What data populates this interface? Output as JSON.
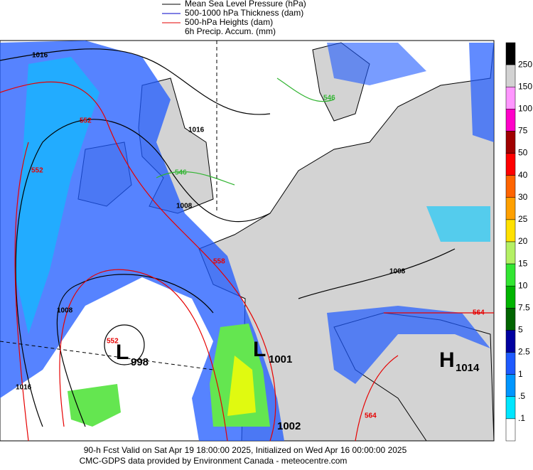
{
  "legend": [
    "Mean Sea Level Pressure (hPa)",
    "500-1000 hPa Thickness (dam)",
    "500-hPa Heights (dam)",
    "6h Precip. Accum. (mm)"
  ],
  "colorbar": [
    "250",
    "150",
    "100",
    "75",
    "50",
    "40",
    "30",
    "25",
    "20",
    "15",
    "10",
    "7.5",
    "5",
    "2.5",
    "1",
    ".5",
    ".1"
  ],
  "contour_labels": [
    "1016",
    "1016",
    "1016",
    "1008",
    "1008",
    "1008",
    "552",
    "552",
    "558",
    "546",
    "546",
    "564",
    "564",
    "552"
  ],
  "centers": [
    {
      "symbol": "L",
      "value": "998"
    },
    {
      "symbol": "L",
      "value": "1001"
    },
    {
      "symbol": "H",
      "value": "1014"
    },
    {
      "value": "1002"
    }
  ],
  "footer": [
    "90-h Fcst Valid on Sat Apr 19 18:00:00 2025, Initialized on Wed Apr 16 00:00:00 2025",
    "CMC-GDPS data provided by Environment Canada - meteocentre.com"
  ]
}
